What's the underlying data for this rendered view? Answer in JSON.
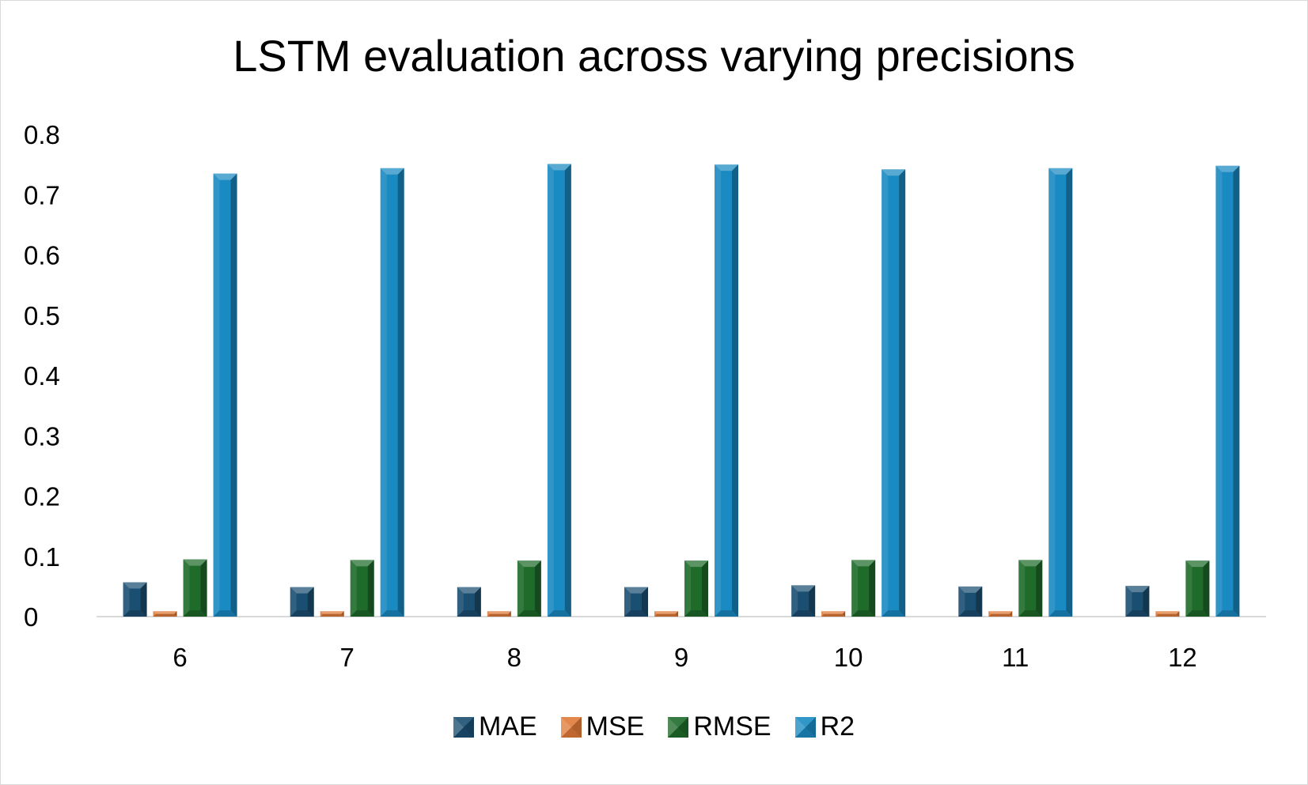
{
  "chart_data": {
    "type": "bar",
    "title": "LSTM evaluation across varying precisions",
    "xlabel": "",
    "ylabel": "",
    "categories": [
      "6",
      "7",
      "8",
      "9",
      "10",
      "11",
      "12"
    ],
    "ylim": [
      0,
      0.8
    ],
    "yticks": [
      "0",
      "0.1",
      "0.2",
      "0.3",
      "0.4",
      "0.5",
      "0.6",
      "0.7",
      "0.8"
    ],
    "grid": false,
    "legend_position": "bottom",
    "series": [
      {
        "name": "MAE",
        "color": "#1b4f72",
        "values": [
          0.057,
          0.049,
          0.049,
          0.049,
          0.052,
          0.05,
          0.051
        ]
      },
      {
        "name": "MSE",
        "color": "#e07b39",
        "values": [
          0.009,
          0.009,
          0.009,
          0.009,
          0.009,
          0.009,
          0.009
        ]
      },
      {
        "name": "RMSE",
        "color": "#1e6b2a",
        "values": [
          0.095,
          0.094,
          0.093,
          0.093,
          0.094,
          0.094,
          0.093
        ]
      },
      {
        "name": "R2",
        "color": "#1a8ac2",
        "values": [
          0.735,
          0.744,
          0.751,
          0.75,
          0.742,
          0.744,
          0.748
        ]
      }
    ]
  }
}
